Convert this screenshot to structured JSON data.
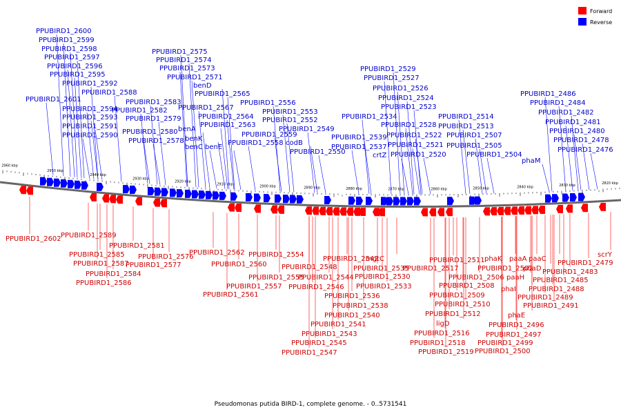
{
  "title": "Pseudomonas putida BIRD-1, complete genome. - 0..5731541",
  "legend": [
    {
      "label": "Forward",
      "color": "#ff0000"
    },
    {
      "label": "Reverse",
      "color": "#0000ff"
    }
  ],
  "colors": {
    "forward": "#ff0000",
    "reverse": "#0000ff",
    "forward_label": "#cc0000",
    "reverse_label": "#0000cc"
  },
  "ticks": [
    "2960 kbp",
    "2950 kbp",
    "2940 kbp",
    "2930 kbp",
    "2920 kbp",
    "2910 kbp",
    "2900 kbp",
    "2890 kbp",
    "2880 kbp",
    "2870 kbp",
    "2860 kbp",
    "2850 kbp",
    "2840 kbp",
    "2830 kbp",
    "2820 kbp"
  ],
  "reverse_labels": [
    "PPUBIRD1_2600",
    "PPUBIRD1_2599",
    "PPUBIRD1_2598",
    "PPUBIRD1_2597",
    "PPUBIRD1_2596",
    "PPUBIRD1_2595",
    "PPUBIRD1_2592",
    "PPUBIRD1_2588",
    "PPUBIRD1_2601",
    "PPUBIRD1_2594",
    "PPUBIRD1_2593",
    "PPUBIRD1_2591",
    "PPUBIRD1_2590",
    "PPUBIRD1_2583",
    "PPUBIRD1_2582",
    "PPUBIRD1_2579",
    "PPUBIRD1_2580",
    "PPUBIRD1_2578",
    "PPUBIRD1_2575",
    "PPUBIRD1_2574",
    "PPUBIRD1_2573",
    "PPUBIRD1_2571",
    "benD",
    "PPUBIRD1_2565",
    "PPUBIRD1_2567",
    "benA",
    "PPUBIRD1_2564",
    "benK",
    "PPUBIRD1_2563",
    "benC",
    "benE",
    "PPUBIRD1_2556",
    "PPUBIRD1_2553",
    "PPUBIRD1_2552",
    "PPUBIRD1_2549",
    "PPUBIRD1_2559",
    "PPUBIRD1_2558",
    "codB",
    "PPUBIRD1_2550",
    "PPUBIRD1_2529",
    "PPUBIRD1_2527",
    "PPUBIRD1_2526",
    "PPUBIRD1_2524",
    "PPUBIRD1_2523",
    "PPUBIRD1_2534",
    "PPUBIRD1_2528",
    "PPUBIRD1_2522",
    "PPUBIRD1_2539",
    "PPUBIRD1_2537",
    "PPUBIRD1_2521",
    "crtZ",
    "PPUBIRD1_2520",
    "PPUBIRD1_2514",
    "PPUBIRD1_2513",
    "PPUBIRD1_2507",
    "PPUBIRD1_2505",
    "PPUBIRD1_2504",
    "PPUBIRD1_2486",
    "PPUBIRD1_2484",
    "PPUBIRD1_2482",
    "PPUBIRD1_2481",
    "PPUBIRD1_2480",
    "PPUBIRD1_2478",
    "PPUBIRD1_2476",
    "phaM"
  ],
  "forward_labels": [
    "PPUBIRD1_2602",
    "PPUBIRD1_2589",
    "PPUBIRD1_2585",
    "PPUBIRD1_2587",
    "PPUBIRD1_2584",
    "PPUBIRD1_2586",
    "PPUBIRD1_2581",
    "PPUBIRD1_2577",
    "PPUBIRD1_2576",
    "PPUBIRD1_2562",
    "PPUBIRD1_2560",
    "PPUBIRD1_2557",
    "PPUBIRD1_2561",
    "PPUBIRD1_2554",
    "PPUBIRD1_2555",
    "PPUBIRD1_2542",
    "PPUBIRD1_2548",
    "PPUBIRD1_2544",
    "PPUBIRD1_2546",
    "PPUBIRD1_2536",
    "PPUBIRD1_2538",
    "PPUBIRD1_2540",
    "PPUBIRD1_2541",
    "PPUBIRD1_2543",
    "PPUBIRD1_2545",
    "PPUBIRD1_2547",
    "mgtC",
    "PPUBIRD1_2535",
    "PPUBIRD1_2530",
    "PPUBIRD1_2533",
    "PPUBIRD1_2511",
    "PPUBIRD1_2517",
    "PPUBIRD1_2506",
    "PPUBIRD1_2508",
    "PPUBIRD1_2509",
    "PPUBIRD1_2510",
    "PPUBIRD1_2512",
    "ligD",
    "PPUBIRD1_2516",
    "PPUBIRD1_2518",
    "PPUBIRD1_2519",
    "phaK",
    "PPUBIRD1_2502",
    "paaA",
    "phaI",
    "paaH",
    "phaD",
    "paaC",
    "phaE",
    "PPUBIRD1_2496",
    "PPUBIRD1_2497",
    "PPUBIRD1_2499",
    "PPUBIRD1_2500",
    "PPUBIRD1_2479",
    "scrY",
    "PPUBIRD1_2483",
    "PPUBIRD1_2485",
    "PPUBIRD1_2488",
    "PPUBIRD1_2489",
    "PPUBIRD1_2491"
  ]
}
